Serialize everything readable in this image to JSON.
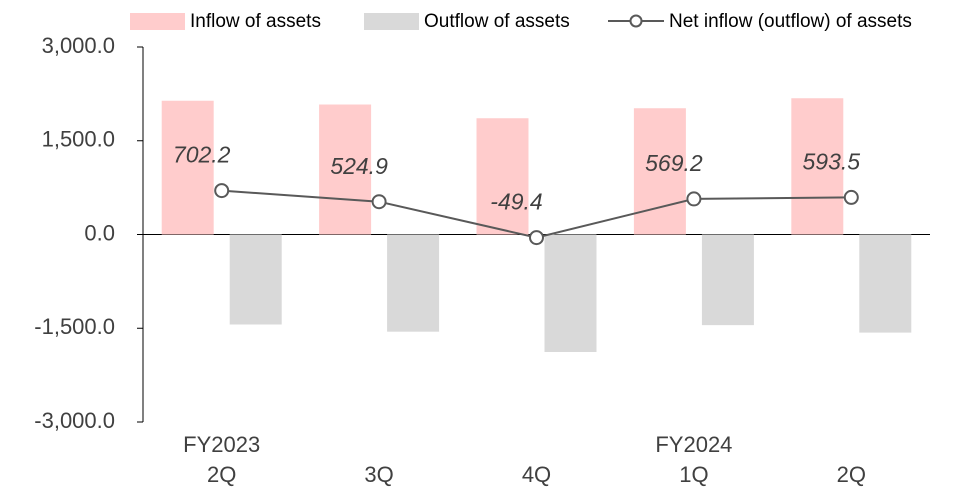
{
  "chart_data": {
    "type": "bar_line",
    "categories": [
      "2Q",
      "3Q",
      "4Q",
      "1Q",
      "2Q"
    ],
    "year_labels": [
      "FY2023",
      null,
      null,
      "FY2024",
      null
    ],
    "series": [
      {
        "name": "Inflow of assets",
        "type": "bar",
        "color": "#ffcccc",
        "values": [
          2140,
          2080,
          1860,
          2020,
          2180
        ]
      },
      {
        "name": "Outflow of assets",
        "type": "bar",
        "color": "#d9d9d9",
        "values": [
          -1440,
          -1555,
          -1880,
          -1450,
          -1570
        ]
      },
      {
        "name": "Net inflow (outflow) of assets",
        "type": "line",
        "color": "#595959",
        "values": [
          702.2,
          524.9,
          -49.4,
          569.2,
          593.5
        ]
      }
    ],
    "ylim": [
      -3000,
      3000
    ],
    "yticks": [
      {
        "value": -3000,
        "label": "-3,000.0"
      },
      {
        "value": -1500,
        "label": "-1,500.0"
      },
      {
        "value": 0,
        "label": "0.0"
      },
      {
        "value": 1500,
        "label": "1,500.0"
      },
      {
        "value": 3000,
        "label": "3,000.0"
      }
    ],
    "grid": false
  }
}
